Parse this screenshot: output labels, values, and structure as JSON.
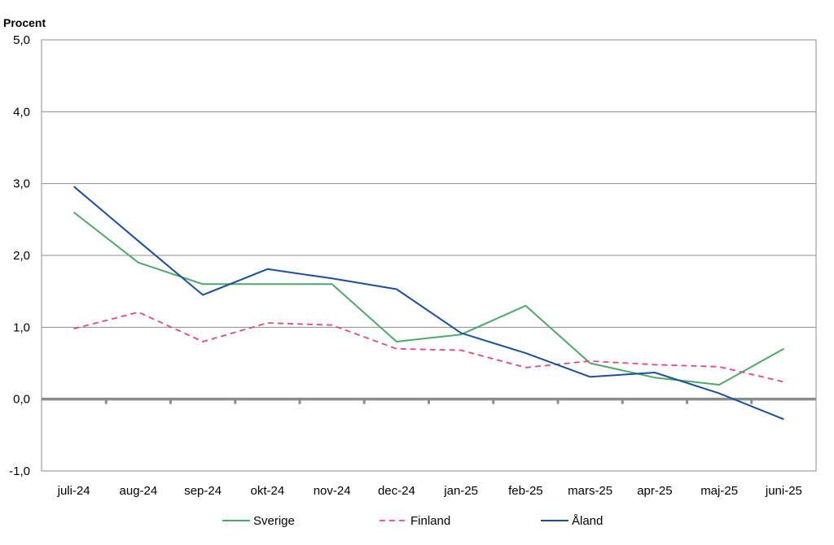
{
  "chart_data": {
    "type": "line",
    "ylabel": "Procent",
    "xlabel": "",
    "title": "",
    "ylim": [
      -1.0,
      5.0
    ],
    "yticks": [
      -1.0,
      0.0,
      1.0,
      2.0,
      3.0,
      4.0,
      5.0
    ],
    "ytick_labels": [
      "-1,0",
      "0,0",
      "1,0",
      "2,0",
      "3,0",
      "4,0",
      "5,0"
    ],
    "grid": true,
    "legend_position": "bottom",
    "categories": [
      "juli-24",
      "aug-24",
      "sep-24",
      "okt-24",
      "nov-24",
      "dec-24",
      "jan-25",
      "feb-25",
      "mars-25",
      "apr-25",
      "maj-25",
      "juni-25"
    ],
    "series": [
      {
        "name": "Sverige",
        "color": "#4ea86a",
        "dash": "solid",
        "values": [
          2.6,
          1.9,
          1.6,
          1.6,
          1.6,
          0.8,
          0.9,
          1.3,
          0.5,
          0.3,
          0.2,
          0.7
        ]
      },
      {
        "name": "Finland",
        "color": "#e6477a",
        "dash": "dashed",
        "values": [
          0.98,
          1.21,
          0.8,
          1.06,
          1.03,
          0.7,
          0.68,
          0.44,
          0.53,
          0.48,
          0.45,
          0.24
        ]
      },
      {
        "name": "Åland",
        "color": "#1a4f9c",
        "dash": "solid",
        "values": [
          2.96,
          2.2,
          1.45,
          1.81,
          1.68,
          1.53,
          0.92,
          0.64,
          0.31,
          0.37,
          0.08,
          -0.28
        ]
      }
    ]
  }
}
